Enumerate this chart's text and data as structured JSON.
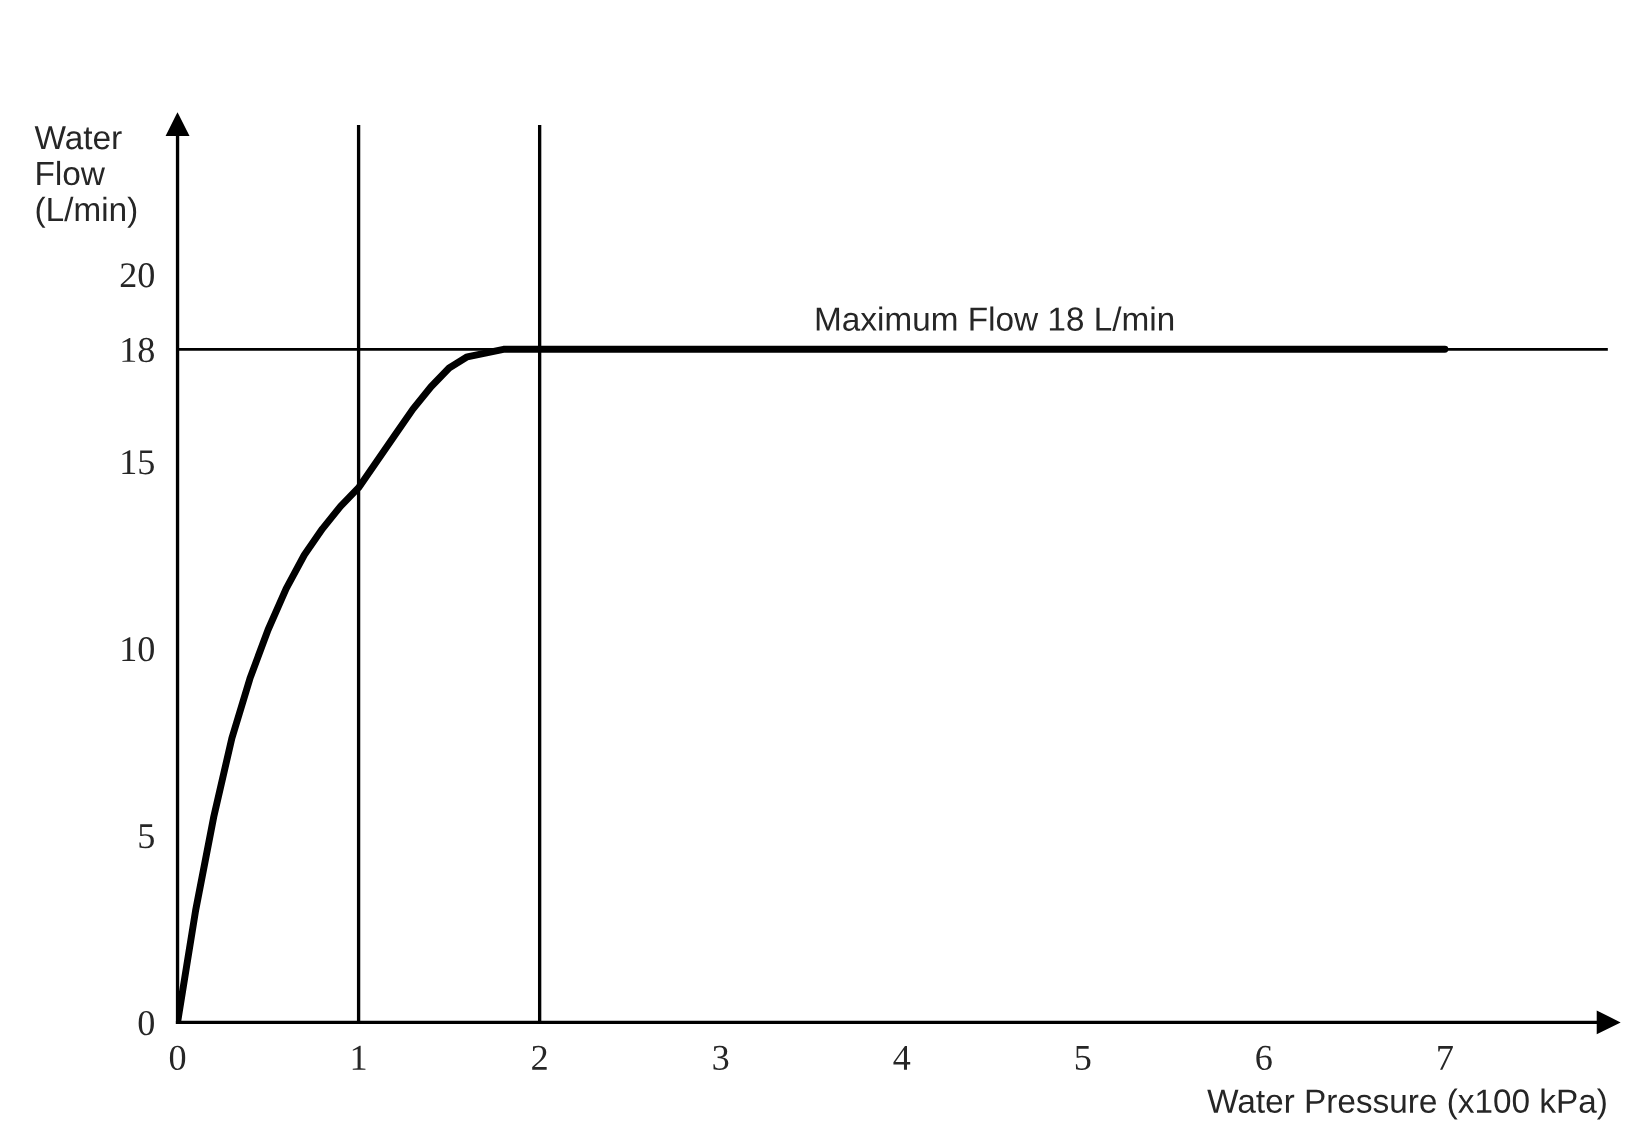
{
  "chart_data": {
    "type": "line",
    "xlabel": "Water Pressure (x100 kPa)",
    "ylabel": "Water\nFlow\n(L/min)",
    "x": [
      0,
      0.05,
      0.1,
      0.2,
      0.3,
      0.4,
      0.5,
      0.6,
      0.7,
      0.8,
      0.9,
      1.0,
      1.1,
      1.2,
      1.3,
      1.4,
      1.5,
      1.6,
      1.8,
      2.0,
      7.0
    ],
    "series": [
      {
        "color": "#000000",
        "values": [
          0,
          1.5,
          3,
          5.5,
          7.6,
          9.2,
          10.5,
          11.6,
          12.5,
          13.2,
          13.8,
          14.3,
          15.0,
          15.7,
          16.4,
          17.0,
          17.5,
          17.8,
          18,
          18,
          18
        ]
      }
    ],
    "xlim": [
      0,
      7.9
    ],
    "ylim": [
      0,
      24
    ],
    "xticks": [
      0,
      1,
      2,
      3,
      4,
      5,
      6,
      7
    ],
    "yticks": [
      0,
      5,
      10,
      15,
      18,
      20
    ],
    "ref_lines": [
      {
        "axis": "y",
        "value": 18,
        "label": "Maximum Flow 18 L/min"
      },
      {
        "axis": "x",
        "value": 1,
        "label": null
      },
      {
        "axis": "x",
        "value": 2,
        "label": null
      }
    ],
    "grid": false,
    "legend": false,
    "marker": "none",
    "line_style": "solid"
  }
}
